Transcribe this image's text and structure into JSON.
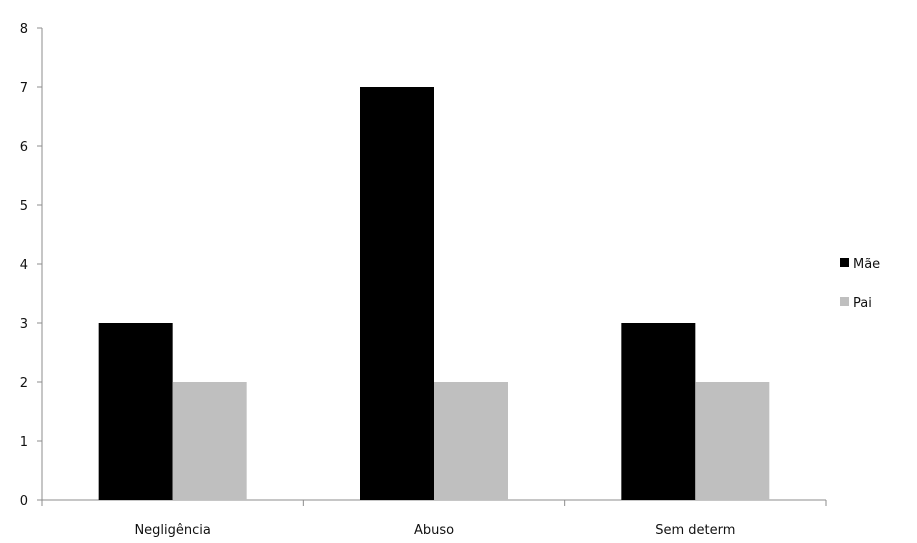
{
  "chart_data": {
    "type": "bar",
    "categories": [
      "Negligência",
      "Abuso",
      "Sem determ"
    ],
    "series": [
      {
        "name": "Mãe",
        "values": [
          3,
          7,
          3
        ],
        "color": "#000000"
      },
      {
        "name": "Pai",
        "values": [
          2,
          2,
          2
        ],
        "color": "#bfbfbf"
      }
    ],
    "title": "",
    "xlabel": "",
    "ylabel": "",
    "ylim": [
      0,
      8
    ],
    "yticks": [
      0,
      1,
      2,
      3,
      4,
      5,
      6,
      7,
      8
    ],
    "grid": false,
    "legend_position": "right"
  }
}
